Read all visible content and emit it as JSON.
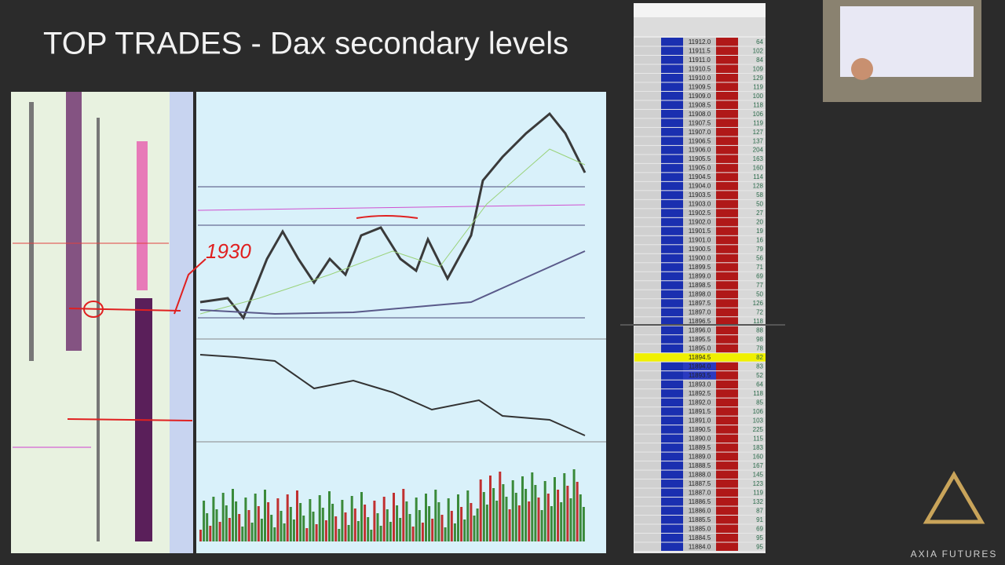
{
  "header": {
    "title": "TOP TRADES - Dax secondary levels"
  },
  "annotation": "1930",
  "logo": "AXIA FUTURES",
  "ladder": {
    "prices": [
      "11912.0",
      "11911.5",
      "11911.0",
      "11910.5",
      "11910.0",
      "11909.5",
      "11909.0",
      "11908.5",
      "11908.0",
      "11907.5",
      "11907.0",
      "11906.5",
      "11906.0",
      "11905.5",
      "11905.0",
      "11904.5",
      "11904.0",
      "11903.5",
      "11903.0",
      "11902.5",
      "11902.0",
      "11901.5",
      "11901.0",
      "11900.5",
      "11900.0",
      "11899.5",
      "11899.0",
      "11898.5",
      "11898.0",
      "11897.5",
      "11897.0",
      "11896.5",
      "11896.0",
      "11895.5",
      "11895.0",
      "11894.5",
      "11894.0",
      "11893.5",
      "11893.0",
      "11892.5",
      "11892.0",
      "11891.5",
      "11891.0",
      "11890.5",
      "11890.0",
      "11889.5",
      "11889.0",
      "11888.5",
      "11888.0",
      "11887.5",
      "11887.0",
      "11886.5",
      "11886.0",
      "11885.5",
      "11885.0",
      "11884.5",
      "11884.0"
    ],
    "volumes": [
      64,
      102,
      84,
      109,
      129,
      119,
      100,
      118,
      106,
      119,
      127,
      137,
      204,
      163,
      160,
      114,
      128,
      58,
      50,
      27,
      20,
      19,
      16,
      79,
      56,
      71,
      69,
      77,
      50,
      126,
      72,
      118,
      88,
      98,
      78,
      82,
      83,
      52,
      64,
      118,
      85,
      106,
      103,
      225,
      115,
      183,
      160,
      167,
      145,
      123,
      119,
      132,
      87,
      91,
      69,
      95,
      95
    ],
    "highlight_row": 35
  }
}
